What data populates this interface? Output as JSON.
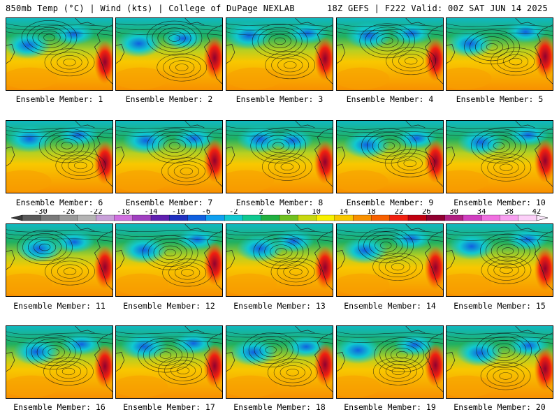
{
  "header": {
    "left": "850mb Temp (°C) | Wind (kts) | College of DuPage NEXLAB",
    "right": "18Z GEFS | F222 Valid: 00Z SAT JUN 14 2025"
  },
  "members": [
    "Ensemble Member: 1",
    "Ensemble Member: 2",
    "Ensemble Member: 3",
    "Ensemble Member: 4",
    "Ensemble Member: 5",
    "Ensemble Member: 6",
    "Ensemble Member: 7",
    "Ensemble Member: 8",
    "Ensemble Member: 9",
    "Ensemble Member: 10",
    "Ensemble Member: 11",
    "Ensemble Member: 12",
    "Ensemble Member: 13",
    "Ensemble Member: 14",
    "Ensemble Member: 15",
    "Ensemble Member: 16",
    "Ensemble Member: 17",
    "Ensemble Member: 18",
    "Ensemble Member: 19",
    "Ensemble Member: 20"
  ],
  "colorbar": {
    "ticks": [
      "-30",
      "-26",
      "-22",
      "-18",
      "-14",
      "-10",
      "-6",
      "-2",
      "2",
      "6",
      "10",
      "14",
      "18",
      "22",
      "26",
      "30",
      "34",
      "38",
      "42"
    ],
    "colors": [
      "#5a5a5a",
      "#7a7a7a",
      "#9a9a9a",
      "#b4b4b4",
      "#c8a0d8",
      "#d070e0",
      "#a040c0",
      "#6020b0",
      "#2030c0",
      "#1060e0",
      "#10a0f0",
      "#10c8d0",
      "#10c890",
      "#20b040",
      "#70c020",
      "#c8d810",
      "#f8f000",
      "#f8c800",
      "#f89000",
      "#f86000",
      "#f02010",
      "#c00010",
      "#900030",
      "#b02080",
      "#d040c0",
      "#f070e0",
      "#f8a0f0",
      "#fcd0f8"
    ]
  }
}
